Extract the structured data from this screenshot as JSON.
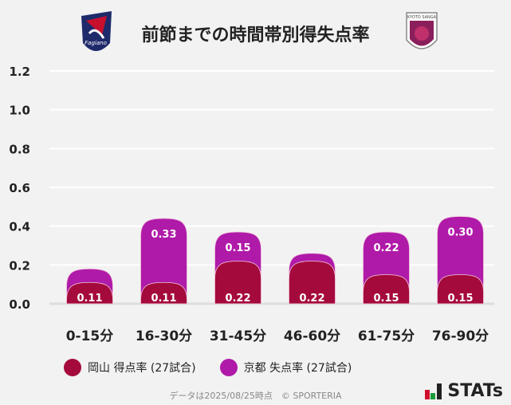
{
  "title": "前節までの時間帯別得失点率",
  "logos": {
    "left": "Fagiano Okayama",
    "right": "KYOTO SANGA"
  },
  "colors": {
    "okayama": "#a50a3c",
    "kyoto": "#b01aa8",
    "grid": "#ffffff",
    "background": "#f2f2f2"
  },
  "chart_data": {
    "type": "bar",
    "stacked": true,
    "categories": [
      "0-15分",
      "16-30分",
      "31-45分",
      "46-60分",
      "61-75分",
      "76-90分"
    ],
    "series": [
      {
        "name": "岡山 得点率 (27試合)",
        "values": [
          0.11,
          0.11,
          0.22,
          0.22,
          0.15,
          0.15
        ],
        "labels": [
          "0.11",
          "0.11",
          "0.22",
          "0.22",
          "0.15",
          "0.15"
        ]
      },
      {
        "name": "京都 失点率 (27試合)",
        "values": [
          0.07,
          0.33,
          0.15,
          0.04,
          0.22,
          0.3
        ],
        "labels": [
          "",
          "0.33",
          "0.15",
          "",
          "0.22",
          "0.30"
        ]
      }
    ],
    "yticks": [
      "0.0",
      "0.2",
      "0.4",
      "0.6",
      "0.8",
      "1.0",
      "1.2"
    ],
    "ylim": [
      0,
      1.2
    ],
    "grid": true,
    "legend": "bottom"
  },
  "footer": "データは2025/08/25時点　© SPORTERIA",
  "brand": "STATs"
}
